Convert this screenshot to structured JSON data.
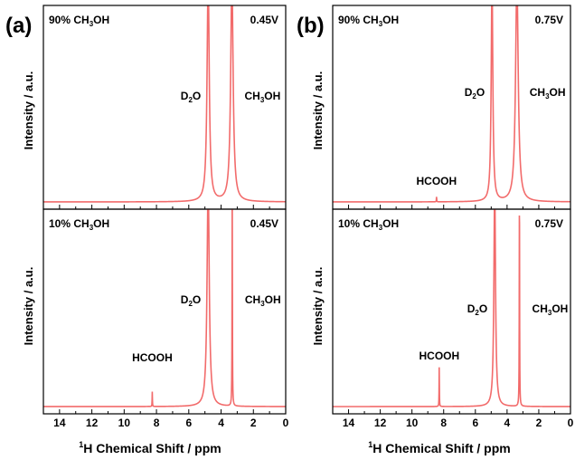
{
  "figure": {
    "panel_labels": [
      "(a)",
      "(b)"
    ],
    "xlabel_sup": "1",
    "xlabel_main": "H Chemical Shift / ppm",
    "ylabel": "Intensity / a.u.",
    "line_color": "#f26b6b"
  },
  "chart_data": [
    {
      "type": "line",
      "panel": "(a)",
      "position": "top",
      "corner_label": {
        "pre": "90% CH",
        "sub": "3",
        "post": "OH"
      },
      "voltage": "0.45V",
      "xlim": [
        15,
        0
      ],
      "x_reversed": true,
      "xticks": [
        14,
        12,
        10,
        8,
        6,
        4,
        2,
        0
      ],
      "ylim": [
        0,
        1
      ],
      "grid": false,
      "peaks": [
        {
          "name": "D2O",
          "label": {
            "pre": "D",
            "sub": "2",
            "post": "O"
          },
          "ppm": 4.8,
          "height": 1.2,
          "width": 0.08
        },
        {
          "name": "CH3OH",
          "label": {
            "pre": "CH",
            "sub": "3",
            "post": "OH"
          },
          "ppm": 3.33,
          "height": 1.2,
          "width": 0.09
        }
      ],
      "baseline": 0.02
    },
    {
      "type": "line",
      "panel": "(a)",
      "position": "bottom",
      "corner_label": {
        "pre": "10% CH",
        "sub": "3",
        "post": "OH"
      },
      "voltage": "0.45V",
      "xlim": [
        15,
        0
      ],
      "x_reversed": true,
      "xticks": [
        14,
        12,
        10,
        8,
        6,
        4,
        2,
        0
      ],
      "ylim": [
        0,
        1
      ],
      "grid": false,
      "peaks": [
        {
          "name": "D2O",
          "label": {
            "pre": "D",
            "sub": "2",
            "post": "O"
          },
          "ppm": 4.8,
          "height": 1.2,
          "width": 0.08
        },
        {
          "name": "CH3OH",
          "label": {
            "pre": "CH",
            "sub": "3",
            "post": "OH"
          },
          "ppm": 3.31,
          "height": 1.2,
          "width": 0.012
        },
        {
          "name": "HCOOH",
          "label": {
            "pre": "HCOOH",
            "sub": "",
            "post": ""
          },
          "ppm": 8.26,
          "height": 0.08,
          "width": 0.01
        }
      ],
      "baseline": 0.02
    },
    {
      "type": "line",
      "panel": "(b)",
      "position": "top",
      "corner_label": {
        "pre": "90% CH",
        "sub": "3",
        "post": "OH"
      },
      "voltage": "0.75V",
      "xlim": [
        15,
        0
      ],
      "x_reversed": true,
      "xticks": [
        14,
        12,
        10,
        8,
        6,
        4,
        2,
        0
      ],
      "ylim": [
        0,
        1
      ],
      "grid": false,
      "peaks": [
        {
          "name": "D2O",
          "label": {
            "pre": "D",
            "sub": "2",
            "post": "O"
          },
          "ppm": 4.95,
          "height": 1.2,
          "width": 0.06
        },
        {
          "name": "CH3OH",
          "label": {
            "pre": "CH",
            "sub": "3",
            "post": "OH"
          },
          "ppm": 3.38,
          "height": 1.2,
          "width": 0.1
        },
        {
          "name": "HCOOH",
          "label": {
            "pre": "HCOOH",
            "sub": "",
            "post": ""
          },
          "ppm": 8.45,
          "height": 0.03,
          "width": 0.01
        }
      ],
      "baseline": 0.04
    },
    {
      "type": "line",
      "panel": "(b)",
      "position": "bottom",
      "corner_label": {
        "pre": "10% CH",
        "sub": "3",
        "post": "OH"
      },
      "voltage": "0.75V",
      "xlim": [
        15,
        0
      ],
      "x_reversed": true,
      "xticks": [
        14,
        12,
        10,
        8,
        6,
        4,
        2,
        0
      ],
      "ylim": [
        0,
        1
      ],
      "grid": false,
      "peaks": [
        {
          "name": "D2O",
          "label": {
            "pre": "D",
            "sub": "2",
            "post": "O"
          },
          "ppm": 4.78,
          "height": 1.2,
          "width": 0.06
        },
        {
          "name": "CH3OH",
          "label": {
            "pre": "CH",
            "sub": "3",
            "post": "OH"
          },
          "ppm": 3.22,
          "height": 1.2,
          "width": 0.012
        },
        {
          "name": "HCOOH",
          "label": {
            "pre": "HCOOH",
            "sub": "",
            "post": ""
          },
          "ppm": 8.28,
          "height": 0.22,
          "width": 0.01
        }
      ],
      "baseline": 0.02
    }
  ]
}
